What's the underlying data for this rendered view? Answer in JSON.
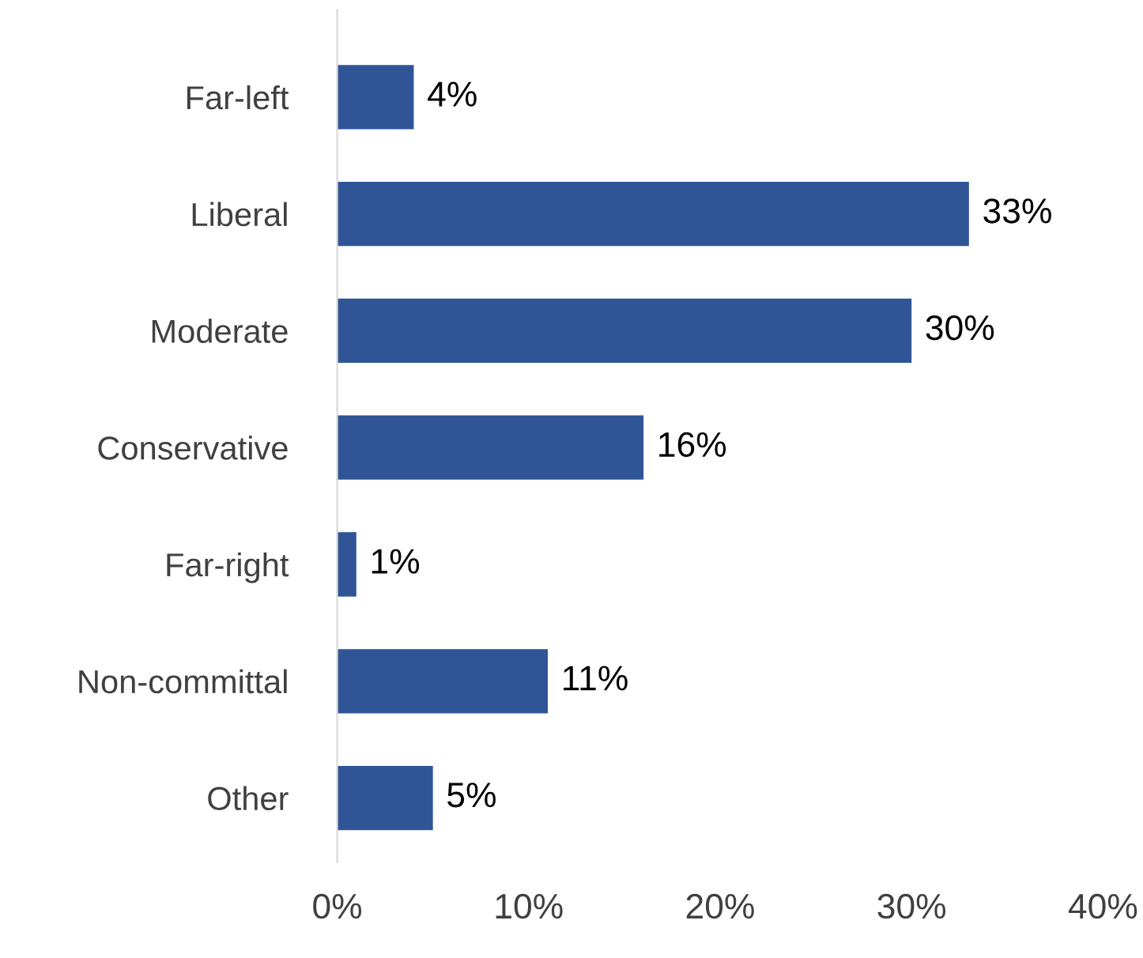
{
  "chart_data": {
    "type": "bar",
    "orientation": "horizontal",
    "categories": [
      "Far-left",
      "Liberal",
      "Moderate",
      "Conservative",
      "Far-right",
      "Non-committal",
      "Other"
    ],
    "values": [
      4,
      33,
      30,
      16,
      1,
      11,
      5
    ],
    "value_labels": [
      "4%",
      "33%",
      "30%",
      "16%",
      "1%",
      "11%",
      "5%"
    ],
    "color": "#2f5597",
    "xlim": [
      0,
      40
    ],
    "xticks": [
      {
        "value": 0,
        "label": "0%"
      },
      {
        "value": 10,
        "label": "10%"
      },
      {
        "value": 20,
        "label": "20%"
      },
      {
        "value": 30,
        "label": "30%"
      },
      {
        "value": 40,
        "label": "40%"
      }
    ],
    "grid": false
  }
}
